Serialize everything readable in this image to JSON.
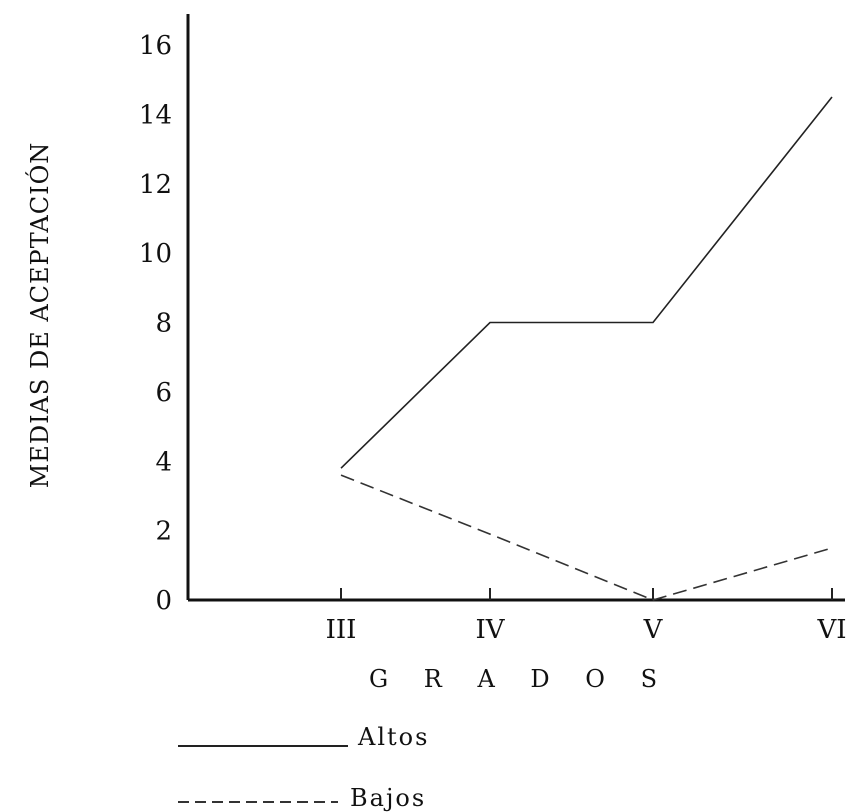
{
  "chart_data": {
    "type": "line",
    "title": "",
    "xlabel": "G R A D O S",
    "ylabel": "MEDIAS DE ACEPTACIÓN",
    "categories": [
      "III",
      "IV",
      "V",
      "VI"
    ],
    "ylim": [
      0,
      16
    ],
    "yticks": [
      "0",
      "2",
      "4",
      "6",
      "8",
      "10",
      "12",
      "14",
      "16"
    ],
    "grid": false,
    "legend_position": "bottom-left",
    "series": [
      {
        "name": "Altos",
        "style": "solid",
        "color": "#222222",
        "values": [
          3.8,
          8.0,
          8.0,
          14.5
        ]
      },
      {
        "name": "Bajos",
        "style": "dashed",
        "color": "#333333",
        "values": [
          3.6,
          1.9,
          0.0,
          1.5
        ]
      }
    ]
  }
}
